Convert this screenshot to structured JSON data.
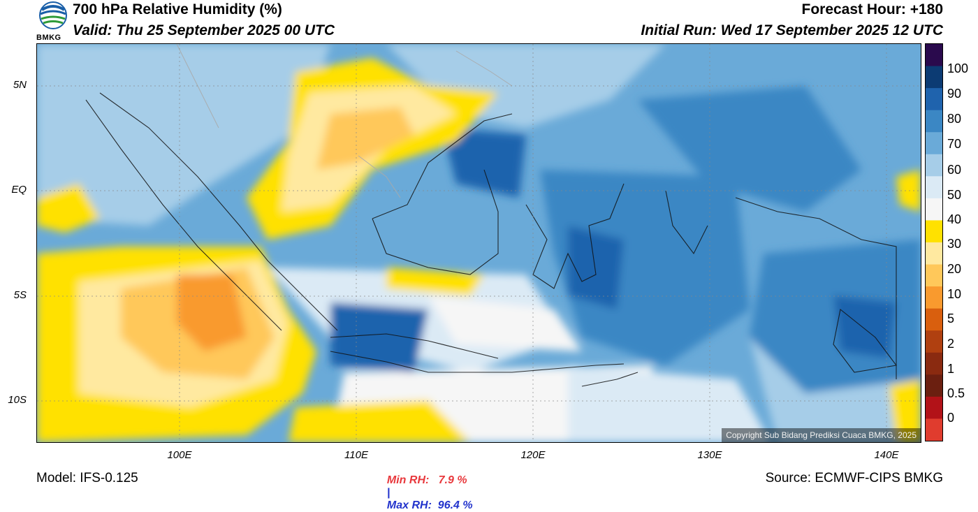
{
  "header": {
    "title": "700 hPa Relative Humidity (%)",
    "valid": "Valid: Thu 25 September 2025 00 UTC",
    "forecast_hour": "Forecast Hour: +180",
    "initial_run": "Initial Run: Wed 17 September 2025 12 UTC",
    "logo_text": "BMKG"
  },
  "axes": {
    "lat_labels": [
      "5N",
      "EQ",
      "5S",
      "10S"
    ],
    "lon_labels": [
      "100E",
      "110E",
      "120E",
      "130E",
      "140E"
    ]
  },
  "colorbar": {
    "labels": [
      "100",
      "90",
      "80",
      "70",
      "60",
      "50",
      "40",
      "30",
      "20",
      "10",
      "5",
      "2",
      "1",
      "0.5",
      "0"
    ],
    "colors": [
      "#2a0a4d",
      "#0c3b73",
      "#1f63ad",
      "#3b87c4",
      "#6aaad8",
      "#a6cde8",
      "#dbeaf5",
      "#f6f6f6",
      "#ffe100",
      "#ffe9a0",
      "#ffc85a",
      "#f99a2e",
      "#d95f0e",
      "#b04010",
      "#8a2a10",
      "#6b1f10",
      "#b21218",
      "#e03c2e"
    ]
  },
  "stats": {
    "min_label": "Min RH:   7.9 %",
    "separator": "|",
    "max_label": "Max RH:  96.4 %",
    "min_color": "#e8383c",
    "max_color": "#2233cc"
  },
  "footer": {
    "model": "Model: IFS-0.125",
    "source": "Source: ECMWF-CIPS BMKG",
    "copyright": "Copyright Sub Bidang Prediksi Cuaca BMKG, 2025"
  }
}
